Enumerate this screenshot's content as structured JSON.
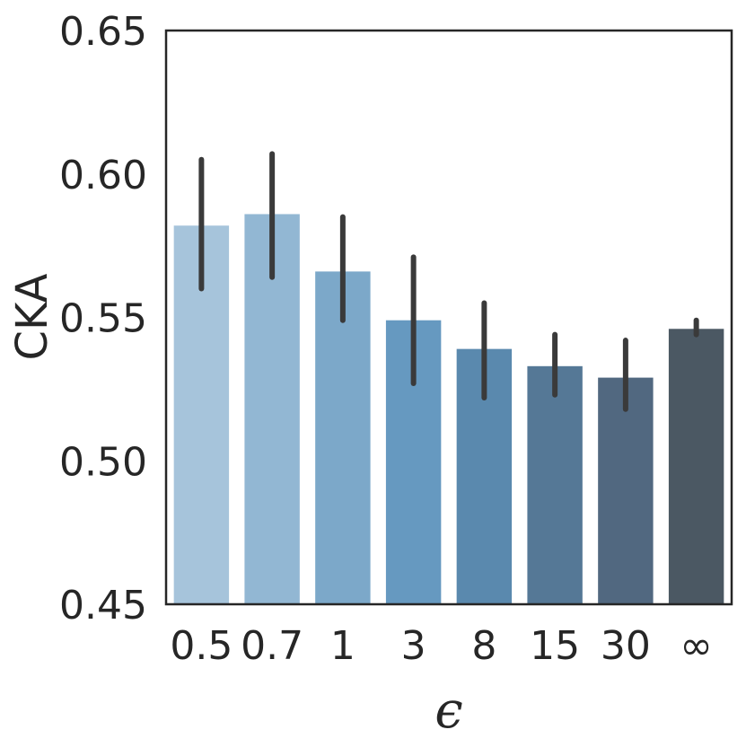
{
  "chart_data": {
    "type": "bar",
    "categories": [
      "0.5",
      "0.7",
      "1",
      "3",
      "8",
      "15",
      "30",
      "∞"
    ],
    "values": [
      0.582,
      0.586,
      0.566,
      0.549,
      0.539,
      0.533,
      0.529,
      0.546
    ],
    "error_low": [
      0.56,
      0.564,
      0.549,
      0.527,
      0.522,
      0.523,
      0.518,
      0.544
    ],
    "error_high": [
      0.605,
      0.607,
      0.585,
      0.571,
      0.555,
      0.544,
      0.542,
      0.549
    ],
    "colors": [
      "#a6c4db",
      "#92b7d3",
      "#7ca8c9",
      "#6699c0",
      "#5a89ae",
      "#557896",
      "#516880",
      "#4b5863"
    ],
    "error_color": "#3a3a3a",
    "title": "",
    "xlabel": "ϵ",
    "ylabel": "CKA",
    "ylim": [
      0.45,
      0.65
    ],
    "yticks": [
      "0.45",
      "0.50",
      "0.55",
      "0.60",
      "0.65"
    ],
    "grid": false,
    "legend": "none"
  }
}
